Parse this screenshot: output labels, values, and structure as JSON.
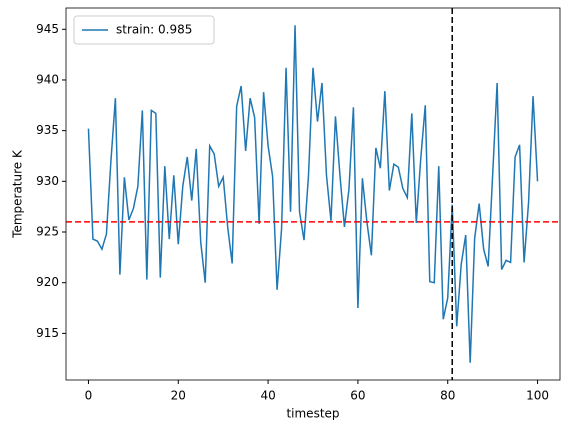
{
  "chart_data": {
    "type": "line",
    "xlabel": "timestep",
    "ylabel": "Temperature K",
    "x": [
      0,
      1,
      2,
      3,
      4,
      5,
      6,
      7,
      8,
      9,
      10,
      11,
      12,
      13,
      14,
      15,
      16,
      17,
      18,
      19,
      20,
      21,
      22,
      23,
      24,
      25,
      26,
      27,
      28,
      29,
      30,
      31,
      32,
      33,
      34,
      35,
      36,
      37,
      38,
      39,
      40,
      41,
      42,
      43,
      44,
      45,
      46,
      47,
      48,
      49,
      50,
      51,
      52,
      53,
      54,
      55,
      56,
      57,
      58,
      59,
      60,
      61,
      62,
      63,
      64,
      65,
      66,
      67,
      68,
      69,
      70,
      71,
      72,
      73,
      74,
      75,
      76,
      77,
      78,
      79,
      80,
      81,
      82,
      83,
      84,
      85,
      86,
      87,
      88,
      89,
      90,
      91,
      92,
      93,
      94,
      95,
      96,
      97,
      98,
      99,
      100
    ],
    "series": [
      {
        "name": "strain: 0.985",
        "color": "#1f77b4",
        "values": [
          935.2,
          924.3,
          924.1,
          923.3,
          924.8,
          932,
          938.2,
          920.8,
          930.4,
          926.2,
          927.3,
          929.5,
          937,
          920.3,
          937,
          936.7,
          920.5,
          931.5,
          924.3,
          930.6,
          923.8,
          929.5,
          932.4,
          928.1,
          933.2,
          924,
          920,
          933.5,
          932.7,
          929.5,
          930.4,
          925.5,
          921.9,
          937.4,
          939.4,
          933,
          938.2,
          936.3,
          925.8,
          938.8,
          933.5,
          930.5,
          919.3,
          925.3,
          941.2,
          927,
          945.4,
          927,
          924.2,
          930.6,
          941.2,
          935.9,
          939.7,
          930.6,
          926.1,
          936.4,
          930.6,
          925.5,
          929.2,
          937.3,
          917.5,
          930.3,
          926,
          922.7,
          933.3,
          931.3,
          938.9,
          929.1,
          931.7,
          931.4,
          929.3,
          928.4,
          936.7,
          925.9,
          932.3,
          937.5,
          920.1,
          920,
          931.5,
          916.4,
          918.5,
          927.7,
          915.7,
          921.8,
          924.7,
          912.1,
          924.4,
          927.8,
          923.3,
          921.6,
          930.6,
          939.7,
          921.3,
          922.2,
          922,
          932.4,
          933.6,
          922,
          927.9,
          938.4,
          930
        ]
      }
    ],
    "hlines": [
      {
        "value": 926,
        "color": "#ff0000"
      }
    ],
    "vlines": [
      {
        "value": 81,
        "color": "#000000"
      }
    ],
    "xlim": [
      -5,
      105
    ],
    "xticks": [
      0,
      20,
      40,
      60,
      80,
      100
    ],
    "ylim": [
      910.4,
      947.1
    ],
    "yticks": [
      915,
      920,
      925,
      930,
      935,
      940,
      945
    ],
    "legend": "upper left"
  }
}
